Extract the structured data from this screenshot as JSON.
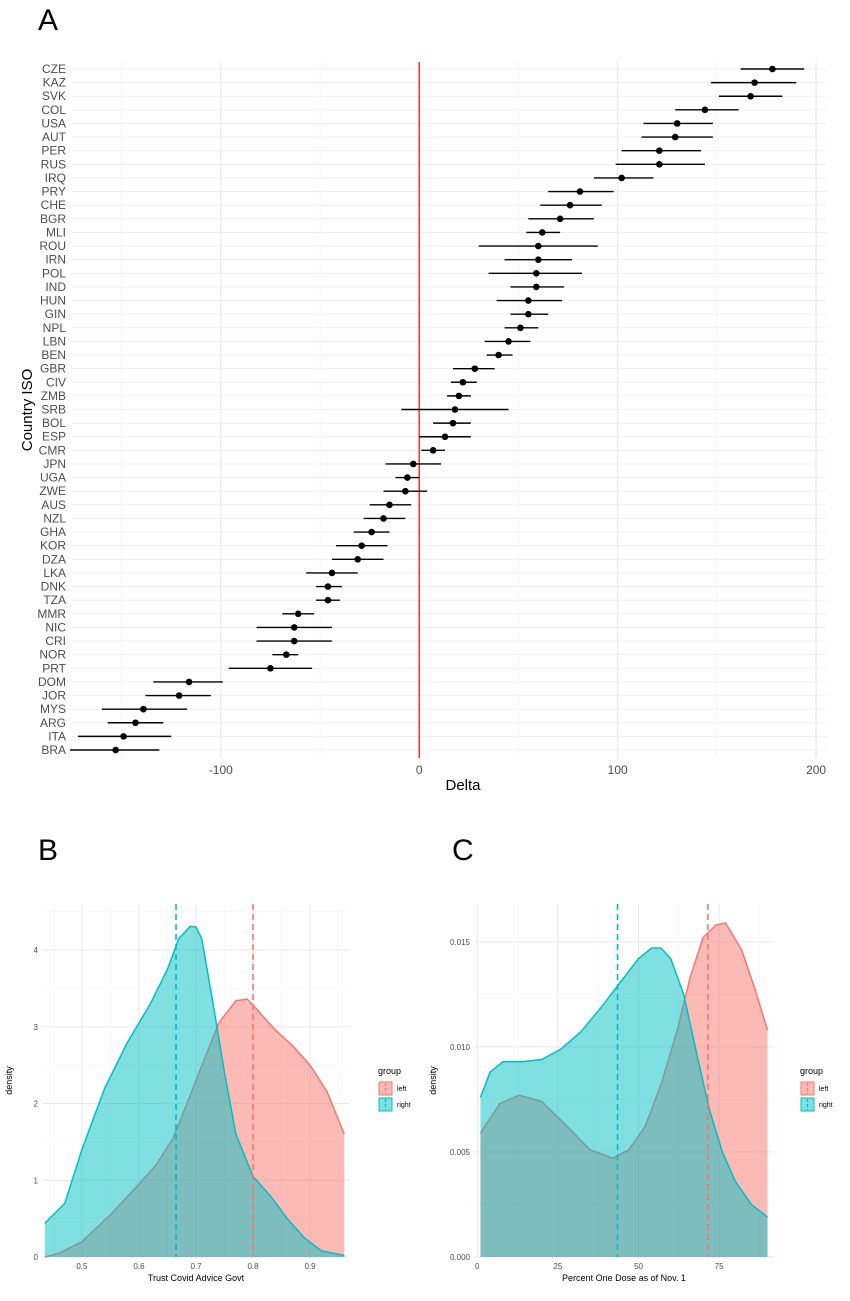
{
  "chart_data": [
    {
      "panel": "A",
      "type": "scatter",
      "subtype": "dot-and-whisker",
      "xlabel": "Delta",
      "ylabel": "Country ISO",
      "xlim": [
        -175,
        205
      ],
      "xticks": [
        -100,
        0,
        100,
        200
      ],
      "reference_line_x": 0,
      "reference_line_color": "#e8423a",
      "grid": true,
      "countries": [
        "CZE",
        "KAZ",
        "SVK",
        "COL",
        "USA",
        "AUT",
        "PER",
        "RUS",
        "IRQ",
        "PRY",
        "CHE",
        "BGR",
        "MLI",
        "ROU",
        "IRN",
        "POL",
        "IND",
        "HUN",
        "GIN",
        "NPL",
        "LBN",
        "BEN",
        "GBR",
        "CIV",
        "ZMB",
        "SRB",
        "BOL",
        "ESP",
        "CMR",
        "JPN",
        "UGA",
        "ZWE",
        "AUS",
        "NZL",
        "GHA",
        "KOR",
        "DZA",
        "LKA",
        "DNK",
        "TZA",
        "MMR",
        "NIC",
        "CRI",
        "NOR",
        "PRT",
        "DOM",
        "JOR",
        "MYS",
        "ARG",
        "ITA",
        "BRA"
      ],
      "estimate": [
        178,
        169,
        167,
        144,
        130,
        129,
        121,
        121,
        102,
        81,
        76,
        71,
        62,
        60,
        60,
        59,
        59,
        55,
        55,
        51,
        45,
        40,
        28,
        22,
        20,
        18,
        17,
        13,
        7,
        -3,
        -6,
        -7,
        -15,
        -18,
        -24,
        -29,
        -31,
        -44,
        -46,
        -46,
        -61,
        -63,
        -63,
        -67,
        -75,
        -116,
        -121,
        -139,
        -143,
        -149,
        -153
      ],
      "lower": [
        162,
        147,
        151,
        129,
        113,
        112,
        102,
        99,
        88,
        65,
        61,
        55,
        54,
        30,
        43,
        35,
        46,
        39,
        46,
        43,
        33,
        34,
        17,
        16,
        14,
        -9,
        7,
        0,
        1,
        -17,
        -12,
        -18,
        -25,
        -28,
        -33,
        -42,
        -44,
        -57,
        -52,
        -52,
        -69,
        -82,
        -82,
        -74,
        -96,
        -134,
        -138,
        -160,
        -157,
        -172,
        -176
      ],
      "upper": [
        194,
        190,
        183,
        161,
        148,
        148,
        142,
        144,
        118,
        98,
        92,
        88,
        71,
        90,
        77,
        82,
        73,
        72,
        65,
        60,
        56,
        47,
        38,
        29,
        26,
        45,
        26,
        26,
        13,
        11,
        0,
        4,
        -4,
        -7,
        -15,
        -16,
        -18,
        -31,
        -39,
        -40,
        -53,
        -44,
        -44,
        -61,
        -54,
        -99,
        -105,
        -117,
        -129,
        -125,
        -131
      ],
      "point_color": "#000000"
    },
    {
      "panel": "B",
      "type": "area",
      "subtype": "density",
      "xlabel": "Trust Covid Advice Govt",
      "ylabel": "density",
      "xlim": [
        0.43,
        0.97
      ],
      "ylim": [
        0,
        4.6
      ],
      "xticks": [
        0.5,
        0.6,
        0.7,
        0.8,
        0.9
      ],
      "yticks": [
        0,
        1,
        2,
        3,
        4
      ],
      "legend_title": "group",
      "legend_position": "right",
      "series": [
        {
          "name": "left",
          "color": "#f8766d",
          "x": [
            0.435,
            0.46,
            0.5,
            0.55,
            0.6,
            0.63,
            0.66,
            0.7,
            0.74,
            0.77,
            0.79,
            0.81,
            0.84,
            0.87,
            0.9,
            0.93,
            0.96
          ],
          "y": [
            0.0,
            0.05,
            0.2,
            0.55,
            0.95,
            1.2,
            1.55,
            2.3,
            3.05,
            3.34,
            3.36,
            3.2,
            2.95,
            2.75,
            2.5,
            2.15,
            1.6
          ],
          "mean": 0.8
        },
        {
          "name": "right",
          "color": "#00bfc4",
          "x": [
            0.435,
            0.47,
            0.5,
            0.54,
            0.58,
            0.62,
            0.65,
            0.67,
            0.69,
            0.7,
            0.71,
            0.73,
            0.75,
            0.77,
            0.8,
            0.83,
            0.86,
            0.89,
            0.92,
            0.96
          ],
          "y": [
            0.44,
            0.7,
            1.4,
            2.2,
            2.8,
            3.3,
            3.75,
            4.15,
            4.31,
            4.3,
            4.15,
            3.3,
            2.4,
            1.6,
            1.05,
            0.8,
            0.5,
            0.25,
            0.08,
            0.02
          ],
          "mean": 0.665
        }
      ]
    },
    {
      "panel": "C",
      "type": "area",
      "subtype": "density",
      "xlabel": "Percent One Dose as of Nov. 1",
      "ylabel": "density",
      "xlim": [
        -1,
        92
      ],
      "ylim": [
        0,
        0.0168
      ],
      "xticks": [
        0,
        25,
        50,
        75
      ],
      "yticks": [
        0.0,
        0.005,
        0.01,
        0.015
      ],
      "ytick_labels": [
        "0.000",
        "0.005",
        "0.010",
        "0.015"
      ],
      "legend_title": "group",
      "legend_position": "right",
      "series": [
        {
          "name": "left",
          "color": "#f8766d",
          "x": [
            1,
            7,
            13,
            20,
            28,
            35,
            42,
            47,
            52,
            57,
            62,
            66,
            70,
            74,
            77,
            82,
            86,
            90
          ],
          "y": [
            0.0059,
            0.0073,
            0.0077,
            0.0074,
            0.0062,
            0.0051,
            0.0047,
            0.0051,
            0.0062,
            0.0082,
            0.0108,
            0.0133,
            0.0152,
            0.0158,
            0.0159,
            0.0146,
            0.0128,
            0.0108
          ],
          "mean": 71.5
        },
        {
          "name": "right",
          "color": "#00bfc4",
          "x": [
            1,
            4,
            8,
            14,
            20,
            26,
            32,
            38,
            44,
            50,
            54,
            57,
            60,
            64,
            68,
            72,
            76,
            80,
            85,
            90
          ],
          "y": [
            0.0076,
            0.0088,
            0.0093,
            0.0093,
            0.0094,
            0.0099,
            0.0107,
            0.0118,
            0.013,
            0.0142,
            0.0147,
            0.0147,
            0.0142,
            0.0125,
            0.0097,
            0.007,
            0.005,
            0.0036,
            0.0025,
            0.0019
          ],
          "mean": 43.5
        }
      ]
    }
  ],
  "panel_labels": {
    "a": "A",
    "b": "B",
    "c": "C"
  }
}
